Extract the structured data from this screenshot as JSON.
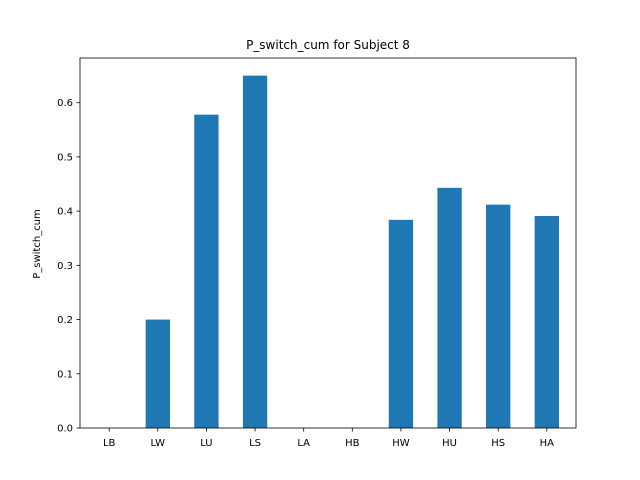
{
  "chart_data": {
    "type": "bar",
    "title": "P_switch_cum for Subject 8",
    "xlabel": "",
    "ylabel": "P_switch_cum",
    "categories": [
      "LB",
      "LW",
      "LU",
      "LS",
      "LA",
      "HB",
      "HW",
      "HU",
      "HS",
      "HA"
    ],
    "values": [
      0.0,
      0.2,
      0.578,
      0.65,
      0.0,
      0.0,
      0.384,
      0.443,
      0.412,
      0.391
    ],
    "ylim": [
      0,
      0.6825
    ],
    "yticks": [
      "0.0",
      "0.1",
      "0.2",
      "0.3",
      "0.4",
      "0.5",
      "0.6"
    ],
    "bar_color": "#1f77b4",
    "grid": false
  }
}
